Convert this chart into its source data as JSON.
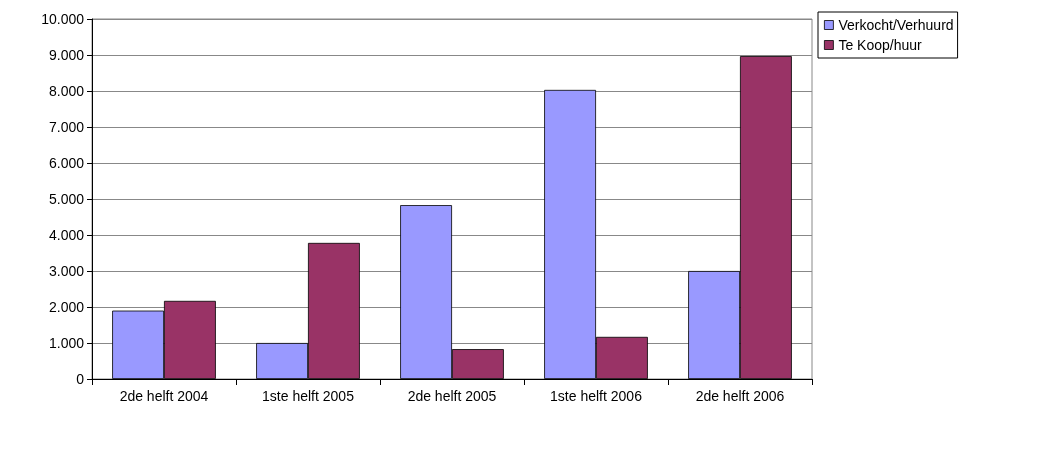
{
  "chart_data": {
    "type": "bar",
    "categories": [
      "2de helft 2004",
      "1ste helft 2005",
      "2de helft 2005",
      "1ste helft 2006",
      "2de helft 2006"
    ],
    "series": [
      {
        "name": "Verkocht/Verhuurd",
        "color": "#9999ff",
        "values": [
          1900,
          1000,
          4830,
          8030,
          3000
        ]
      },
      {
        "name": "Te Koop/huur",
        "color": "#993366",
        "values": [
          2170,
          3780,
          830,
          1170,
          8970
        ]
      }
    ],
    "ylim": [
      0,
      10000
    ],
    "yticks": [
      0,
      {
        "value": 1000,
        "label": "1.000"
      },
      {
        "value": 2000,
        "label": "2.000"
      },
      {
        "value": 3000,
        "label": "3.000"
      },
      {
        "value": 4000,
        "label": "4.000"
      },
      {
        "value": 5000,
        "label": "5.000"
      },
      {
        "value": 6000,
        "label": "6.000"
      },
      {
        "value": 7000,
        "label": "7.000"
      },
      {
        "value": 8000,
        "label": "8.000"
      },
      {
        "value": 9000,
        "label": "9.000"
      },
      {
        "value": 10000,
        "label": "10.000"
      }
    ],
    "grid": "y",
    "legend": "top right"
  }
}
